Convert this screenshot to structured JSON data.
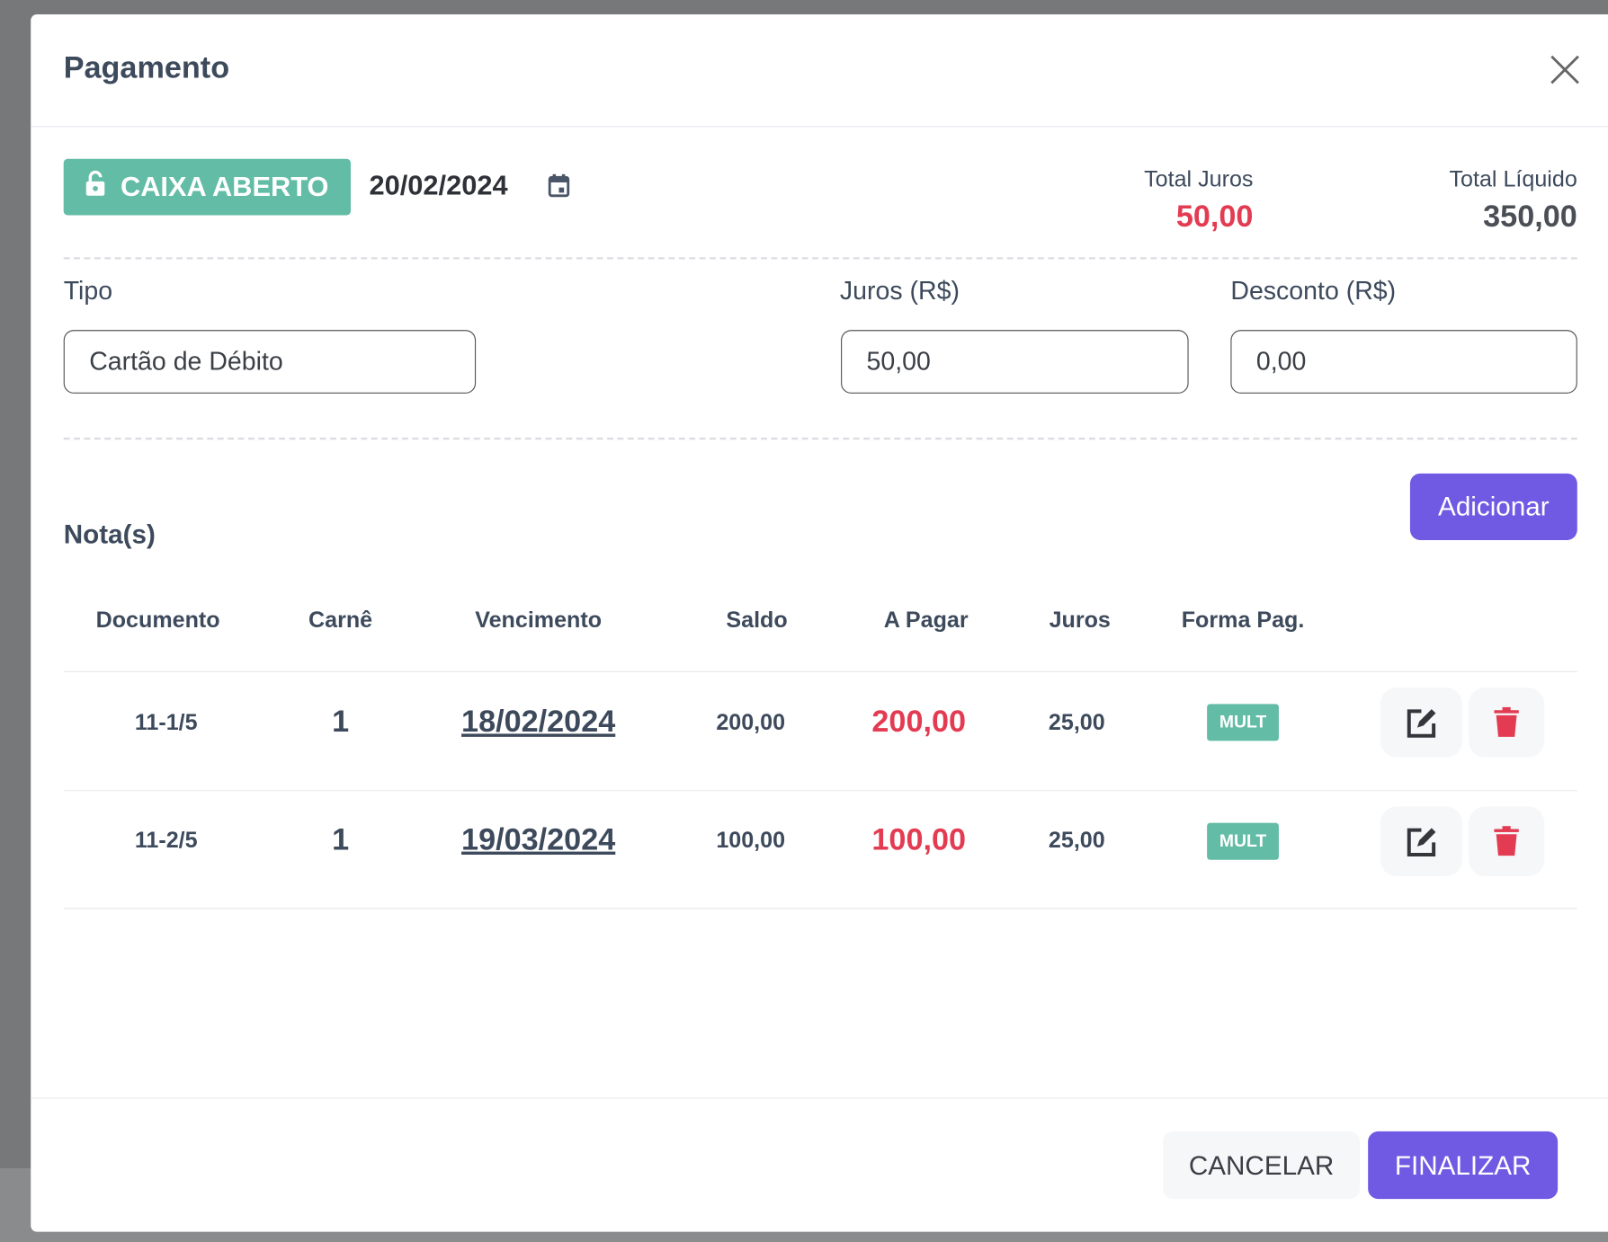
{
  "modal": {
    "title": "Pagamento"
  },
  "status": {
    "caixa_label": "CAIXA ABERTO",
    "date": "20/02/2024",
    "color": "#63bca6"
  },
  "totals": {
    "juros_label": "Total Juros",
    "juros_value": "50,00",
    "liquido_label": "Total Líquido",
    "liquido_value": "350,00"
  },
  "form": {
    "tipo_label": "Tipo",
    "tipo_value": "Cartão de Débito",
    "juros_label": "Juros (R$)",
    "juros_value": "50,00",
    "desconto_label": "Desconto (R$)",
    "desconto_value": "0,00"
  },
  "notas": {
    "title": "Nota(s)",
    "add_label": "Adicionar",
    "columns": [
      "Documento",
      "Carnê",
      "Vencimento",
      "Saldo",
      "A Pagar",
      "Juros",
      "Forma Pag."
    ],
    "rows": [
      {
        "documento": "11-1/5",
        "carne": "1",
        "vencimento": "18/02/2024",
        "saldo": "200,00",
        "a_pagar": "200,00",
        "juros": "25,00",
        "forma": "MULT"
      },
      {
        "documento": "11-2/5",
        "carne": "1",
        "vencimento": "19/03/2024",
        "saldo": "100,00",
        "a_pagar": "100,00",
        "juros": "25,00",
        "forma": "MULT"
      }
    ]
  },
  "footer": {
    "cancel_label": "CANCELAR",
    "finalize_label": "FINALIZAR"
  },
  "colors": {
    "accent": "#7059e3",
    "danger": "#e33b52",
    "success": "#63bca6"
  }
}
